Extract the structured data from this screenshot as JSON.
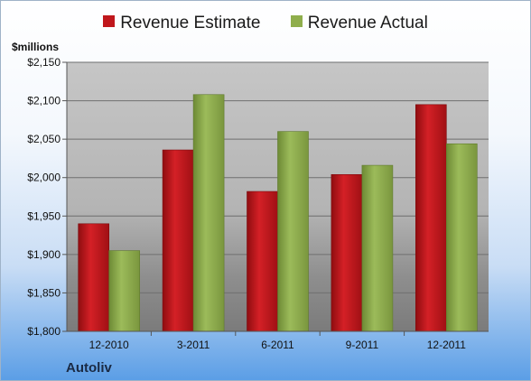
{
  "unit_label": "$millions",
  "footer_title": "Autoliv",
  "colors": {
    "estimate": "#c0171c",
    "actual": "#8fae4c"
  },
  "chart_data": {
    "type": "bar",
    "categories": [
      "12-2010",
      "3-2011",
      "6-2011",
      "9-2011",
      "12-2011"
    ],
    "series": [
      {
        "name": "Revenue Estimate",
        "values": [
          1940,
          2036,
          1982,
          2004,
          2095
        ]
      },
      {
        "name": "Revenue Actual",
        "values": [
          1905,
          2108,
          2060,
          2016,
          2044
        ]
      }
    ],
    "ylabel": "$millions",
    "ylim": [
      1800,
      2150
    ],
    "yticks": [
      "$1,800",
      "$1,850",
      "$1,900",
      "$1,950",
      "$2,000",
      "$2,050",
      "$2,100",
      "$2,150"
    ],
    "ytick_values": [
      1800,
      1850,
      1900,
      1950,
      2000,
      2050,
      2100,
      2150
    ],
    "grid": true,
    "legend_position": "top-center"
  }
}
